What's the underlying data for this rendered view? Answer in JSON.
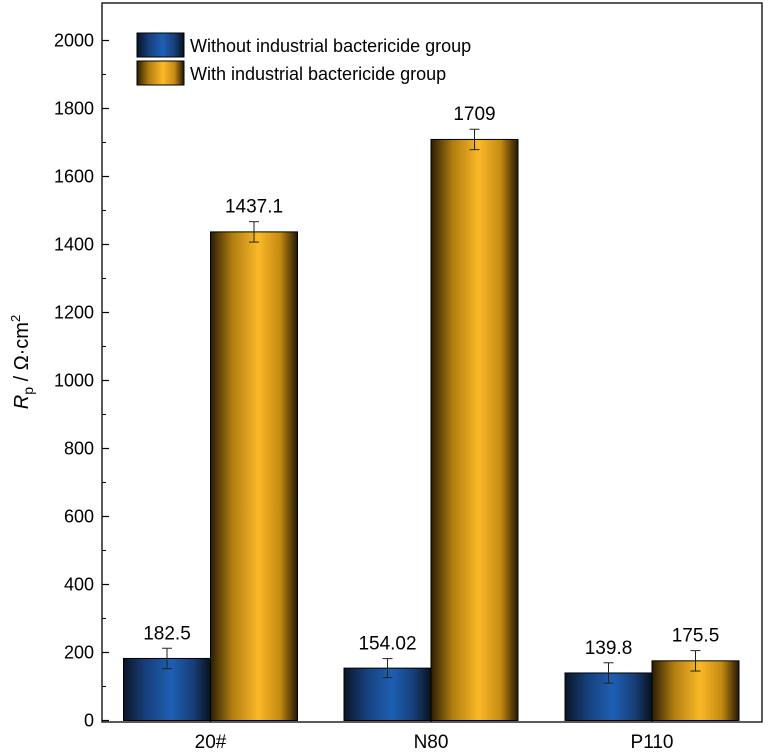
{
  "chart_data": {
    "type": "bar",
    "categories": [
      "20#",
      "N80",
      "P110"
    ],
    "series": [
      {
        "name": "Without industrial bactericide group",
        "values": [
          182.5,
          154.02,
          139.8
        ],
        "labels": [
          "182.5",
          "154.02",
          "139.8"
        ],
        "errors": [
          30,
          28,
          30
        ],
        "color": "#1e5fb4"
      },
      {
        "name": "With industrial bactericide group",
        "values": [
          1437.1,
          1709,
          175.5
        ],
        "labels": [
          "1437.1",
          "1709",
          "175.5"
        ],
        "errors": [
          30,
          30,
          30
        ],
        "color": "#f7b21c"
      }
    ],
    "ylim": [
      0,
      2100
    ],
    "yticks": [
      0,
      200,
      400,
      600,
      800,
      1000,
      1200,
      1400,
      1600,
      1800,
      2000
    ],
    "ylabel_main": "R",
    "ylabel_sub": "p",
    "ylabel_unit": " / Ω·cm",
    "ylabel_sup": "2",
    "legend_position": "top-left",
    "grid": false
  }
}
